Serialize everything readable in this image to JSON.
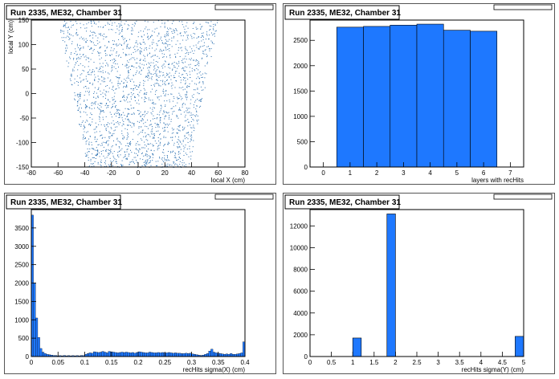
{
  "colors": {
    "accent": "#1e78ff",
    "scatter": "#2a6fb0",
    "frame": "#000000",
    "background": "#ffffff"
  },
  "panels": [
    {
      "title": "Run 2335, ME32, Chamber 31"
    },
    {
      "title": "Run 2335, ME32, Chamber 31"
    },
    {
      "title": "Run 2335, ME32, Chamber 31"
    },
    {
      "title": "Run 2335, ME32, Chamber 31"
    }
  ],
  "chart_data": [
    {
      "type": "scatter",
      "title": "Run 2335, ME32, Chamber 31",
      "xlabel": "local X (cm)",
      "ylabel": "local Y (cm)",
      "xlim": [
        -80,
        80
      ],
      "ylim": [
        -150,
        150
      ],
      "x_ticks": [
        "-80",
        "-60",
        "-40",
        "-20",
        "0",
        "20",
        "40",
        "60",
        "80"
      ],
      "y_ticks": [
        "-150",
        "-100",
        "-50",
        "0",
        "50",
        "100",
        "150"
      ],
      "region": {
        "top_y": 150,
        "bottom_y": -150,
        "top_half_width": 60,
        "bottom_half_width": 38
      }
    },
    {
      "type": "bar",
      "title": "Run 2335, ME32, Chamber 31",
      "xlabel": "layers with recHits",
      "ylabel": "",
      "xlim": [
        -0.5,
        7.5
      ],
      "ylim": [
        0,
        2900
      ],
      "x_ticks": [
        "0",
        "1",
        "2",
        "3",
        "4",
        "5",
        "6",
        "7"
      ],
      "y_ticks": [
        "0",
        "500",
        "1000",
        "1500",
        "2000",
        "2500"
      ],
      "bins": [
        {
          "low": 0.5,
          "high": 1.5,
          "value": 2760
        },
        {
          "low": 1.5,
          "high": 2.5,
          "value": 2775
        },
        {
          "low": 2.5,
          "high": 3.5,
          "value": 2800
        },
        {
          "low": 3.5,
          "high": 4.5,
          "value": 2820
        },
        {
          "low": 4.5,
          "high": 5.5,
          "value": 2700
        },
        {
          "low": 5.5,
          "high": 6.5,
          "value": 2680
        }
      ]
    },
    {
      "type": "bar",
      "title": "Run 2335, ME32, Chamber 31",
      "xlabel": "recHits sigma(X) (cm)",
      "ylabel": "",
      "xlim": [
        0,
        0.4
      ],
      "ylim": [
        0,
        4000
      ],
      "x_ticks": [
        "0",
        "0.05",
        "0.1",
        "0.15",
        "0.2",
        "0.25",
        "0.3",
        "0.35",
        "0.4"
      ],
      "y_ticks": [
        "0",
        "500",
        "1000",
        "1500",
        "2000",
        "2500",
        "3000",
        "3500"
      ],
      "bin_width": 0.004,
      "values": [
        3850,
        2000,
        1050,
        520,
        220,
        120,
        80,
        60,
        50,
        40,
        30,
        30,
        20,
        25,
        20,
        30,
        20,
        25,
        20,
        25,
        20,
        25,
        20,
        30,
        25,
        60,
        80,
        100,
        90,
        130,
        120,
        110,
        120,
        140,
        120,
        100,
        140,
        130,
        120,
        110,
        100,
        110,
        120,
        110,
        120,
        110,
        100,
        110,
        90,
        110,
        130,
        120,
        110,
        100,
        100,
        120,
        110,
        100,
        100,
        110,
        100,
        110,
        100,
        100,
        110,
        100,
        90,
        100,
        90,
        90,
        80,
        80,
        90,
        80,
        90,
        70,
        60,
        50,
        40,
        30,
        40,
        60,
        80,
        150,
        200,
        120,
        100,
        90,
        80,
        70,
        60,
        70,
        60,
        80,
        60,
        60,
        70,
        80,
        100,
        400
      ]
    },
    {
      "type": "bar",
      "title": "Run 2335, ME32, Chamber 31",
      "xlabel": "recHits sigma(Y) (cm)",
      "ylabel": "",
      "xlim": [
        0,
        5
      ],
      "ylim": [
        0,
        13500
      ],
      "x_ticks": [
        "0",
        "0.5",
        "1",
        "1.5",
        "2",
        "2.5",
        "3",
        "3.5",
        "4",
        "4.5",
        "5"
      ],
      "y_ticks": [
        "0",
        "2000",
        "4000",
        "6000",
        "8000",
        "10000",
        "12000"
      ],
      "bins": [
        {
          "low": 1.0,
          "high": 1.2,
          "value": 1700
        },
        {
          "low": 1.8,
          "high": 2.0,
          "value": 13100
        },
        {
          "low": 4.8,
          "high": 5.0,
          "value": 1850
        }
      ]
    }
  ]
}
